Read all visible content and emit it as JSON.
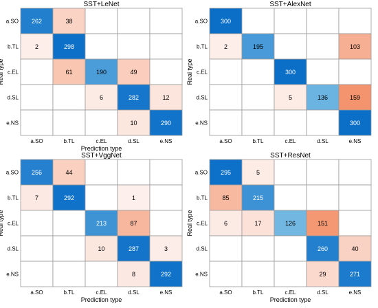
{
  "colors": {
    "diagonal_max": "#0b6fc8",
    "diagonal_min": "#80c2e6",
    "offdiag_max": "#f4946f",
    "offdiag_min": "#fdf0ec",
    "grid": "#9a9a9a",
    "text": "#000000"
  },
  "chart_data": [
    {
      "type": "heatmap",
      "title": "SST+LeNet",
      "xlabel": "Prediction type",
      "ylabel": "Real type",
      "categories": [
        "a.SO",
        "b.TL",
        "c.EL",
        "d.SL",
        "e.NS"
      ],
      "matrix": [
        [
          262,
          38,
          null,
          null,
          null
        ],
        [
          2,
          298,
          null,
          null,
          null
        ],
        [
          null,
          61,
          190,
          49,
          null
        ],
        [
          null,
          null,
          6,
          282,
          12
        ],
        [
          null,
          null,
          null,
          10,
          290
        ]
      ]
    },
    {
      "type": "heatmap",
      "title": "SST+AlexNet",
      "xlabel": "",
      "ylabel": "Real type",
      "categories": [
        "a.SO",
        "b.TL",
        "c.EL",
        "d.SL",
        "e.NS"
      ],
      "matrix": [
        [
          300,
          null,
          null,
          null,
          null
        ],
        [
          2,
          195,
          null,
          null,
          103
        ],
        [
          null,
          null,
          300,
          null,
          null
        ],
        [
          null,
          null,
          5,
          136,
          159
        ],
        [
          null,
          null,
          null,
          null,
          300
        ]
      ]
    },
    {
      "type": "heatmap",
      "title": "SST+VggNet",
      "xlabel": "Prediction type",
      "ylabel": "Real type",
      "categories": [
        "a.SO",
        "b.TL",
        "c.EL",
        "d.SL",
        "e.NS"
      ],
      "matrix": [
        [
          256,
          44,
          null,
          null,
          null
        ],
        [
          7,
          292,
          null,
          1,
          null
        ],
        [
          null,
          null,
          213,
          87,
          null
        ],
        [
          null,
          null,
          10,
          287,
          3
        ],
        [
          null,
          null,
          null,
          8,
          292
        ]
      ]
    },
    {
      "type": "heatmap",
      "title": "SST+ResNet",
      "xlabel": "Prediction type",
      "ylabel": "Real type",
      "categories": [
        "a.SO",
        "b.TL",
        "c.EL",
        "d.SL",
        "e.NS"
      ],
      "matrix": [
        [
          295,
          5,
          null,
          null,
          null
        ],
        [
          85,
          215,
          null,
          null,
          null
        ],
        [
          6,
          17,
          126,
          151,
          null
        ],
        [
          null,
          null,
          null,
          260,
          40
        ],
        [
          null,
          null,
          null,
          29,
          271
        ]
      ]
    }
  ]
}
